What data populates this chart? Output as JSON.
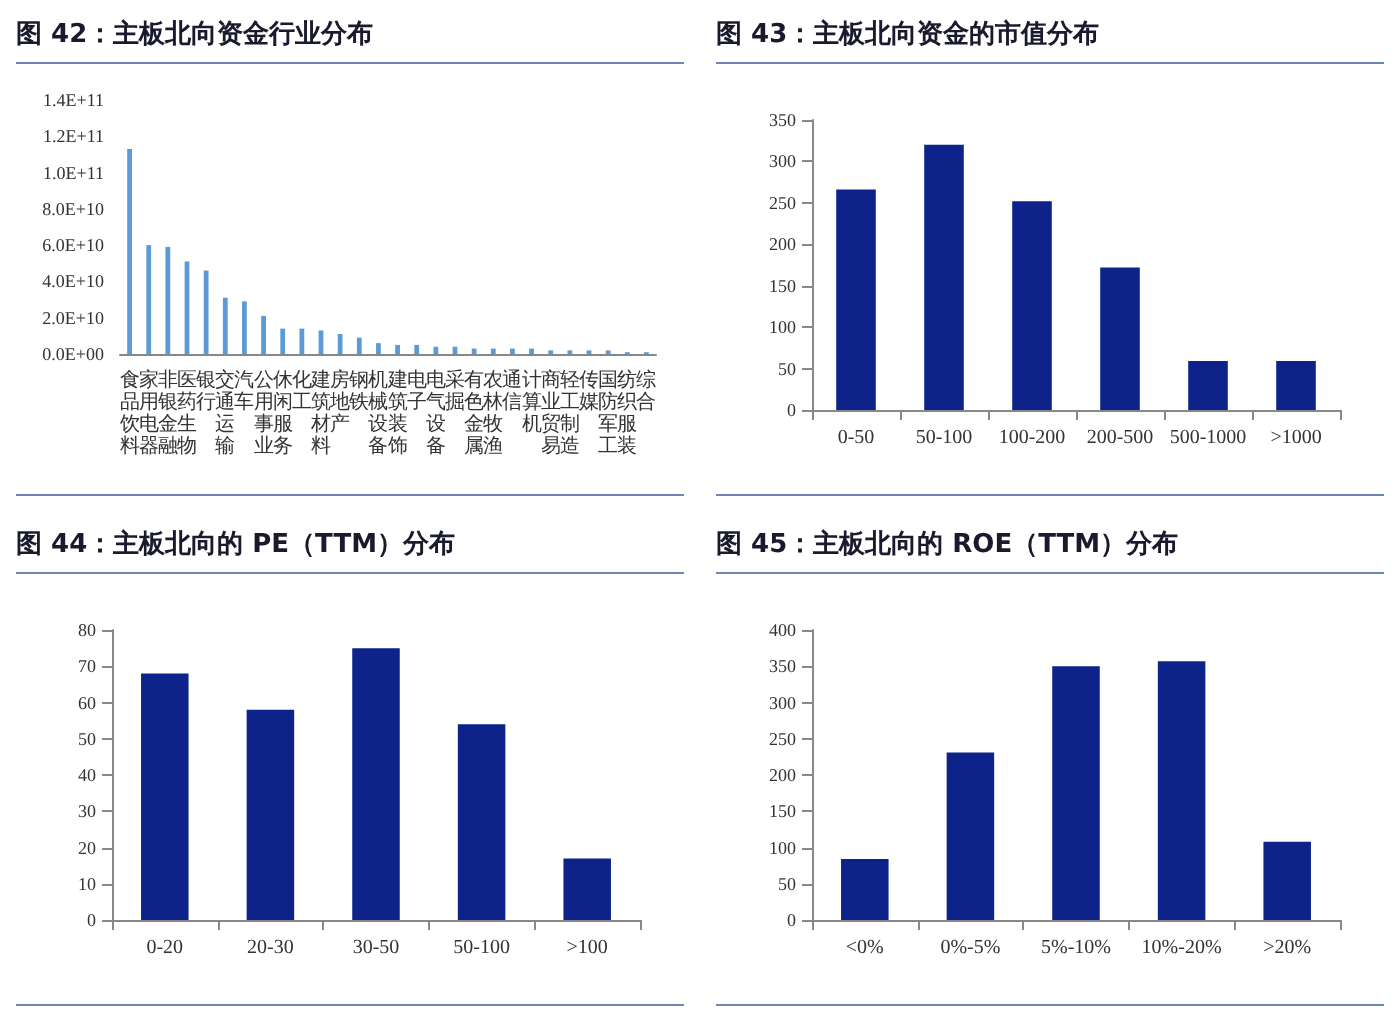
{
  "chart_data": [
    {
      "type": "bar",
      "title": "图 42：主板北向资金行业分布",
      "categories": [
        "食品饮料",
        "家用电器",
        "非银金融",
        "医药生物",
        "银行",
        "交通运输",
        "汽车",
        "公用事业",
        "休闲服务",
        "化工",
        "建筑材料",
        "房地产",
        "钢铁",
        "机械设备",
        "建筑装饰",
        "电子",
        "电气设备",
        "采掘",
        "有色金属",
        "农林牧渔",
        "通信",
        "计算机",
        "商业贸易",
        "轻工制造",
        "传媒",
        "国防军工",
        "纺织服装",
        "综合"
      ],
      "values": [
        113000000000,
        60000000000,
        59000000000,
        51000000000,
        46000000000,
        31000000000,
        29000000000,
        21000000000,
        14000000000,
        14000000000,
        13000000000,
        11000000000,
        9000000000,
        6000000000,
        5000000000,
        5000000000,
        4000000000,
        4000000000,
        3000000000,
        3000000000,
        3000000000,
        3000000000,
        2000000000,
        2000000000,
        2000000000,
        2000000000,
        1000000000,
        1000000000
      ],
      "color": "#5b9bd5",
      "ylim": [
        0,
        140000000000
      ],
      "yticks": [
        {
          "value": 0,
          "label": "0.0E+00"
        },
        {
          "value": 20000000000,
          "label": "2.0E+10"
        },
        {
          "value": 40000000000,
          "label": "4.0E+10"
        },
        {
          "value": 60000000000,
          "label": "6.0E+10"
        },
        {
          "value": 80000000000,
          "label": "8.0E+10"
        },
        {
          "value": 100000000000,
          "label": "1.0E+11"
        },
        {
          "value": 120000000000,
          "label": "1.2E+11"
        },
        {
          "value": 140000000000,
          "label": "1.4E+11"
        }
      ],
      "grid": false
    },
    {
      "type": "bar",
      "title": "图 43：主板北向资金的市值分布",
      "categories": [
        "0-50",
        "50-100",
        "100-200",
        "200-500",
        "500-1000",
        ">1000"
      ],
      "values": [
        266,
        320,
        252,
        172,
        59,
        59
      ],
      "color": "#0d2389",
      "ylim": [
        0,
        350
      ],
      "yticks": [
        0,
        50,
        100,
        150,
        200,
        250,
        300,
        350
      ],
      "grid": false
    },
    {
      "type": "bar",
      "title": "图 44：主板北向的 PE（TTM）分布",
      "categories": [
        "0-20",
        "20-30",
        "30-50",
        "50-100",
        ">100"
      ],
      "values": [
        68,
        58,
        75,
        54,
        17
      ],
      "color": "#0d2389",
      "ylim": [
        0,
        80
      ],
      "yticks": [
        0,
        10,
        20,
        30,
        40,
        50,
        60,
        70,
        80
      ],
      "grid": false
    },
    {
      "type": "bar",
      "title": "图 45：主板北向的 ROE（TTM）分布",
      "categories": [
        "<0%",
        "0%-5%",
        "5%-10%",
        "10%-20%",
        ">20%"
      ],
      "values": [
        84,
        231,
        350,
        357,
        108
      ],
      "color": "#0d2389",
      "ylim": [
        0,
        400
      ],
      "yticks": [
        0,
        50,
        100,
        150,
        200,
        250,
        300,
        350,
        400
      ],
      "grid": false
    }
  ]
}
